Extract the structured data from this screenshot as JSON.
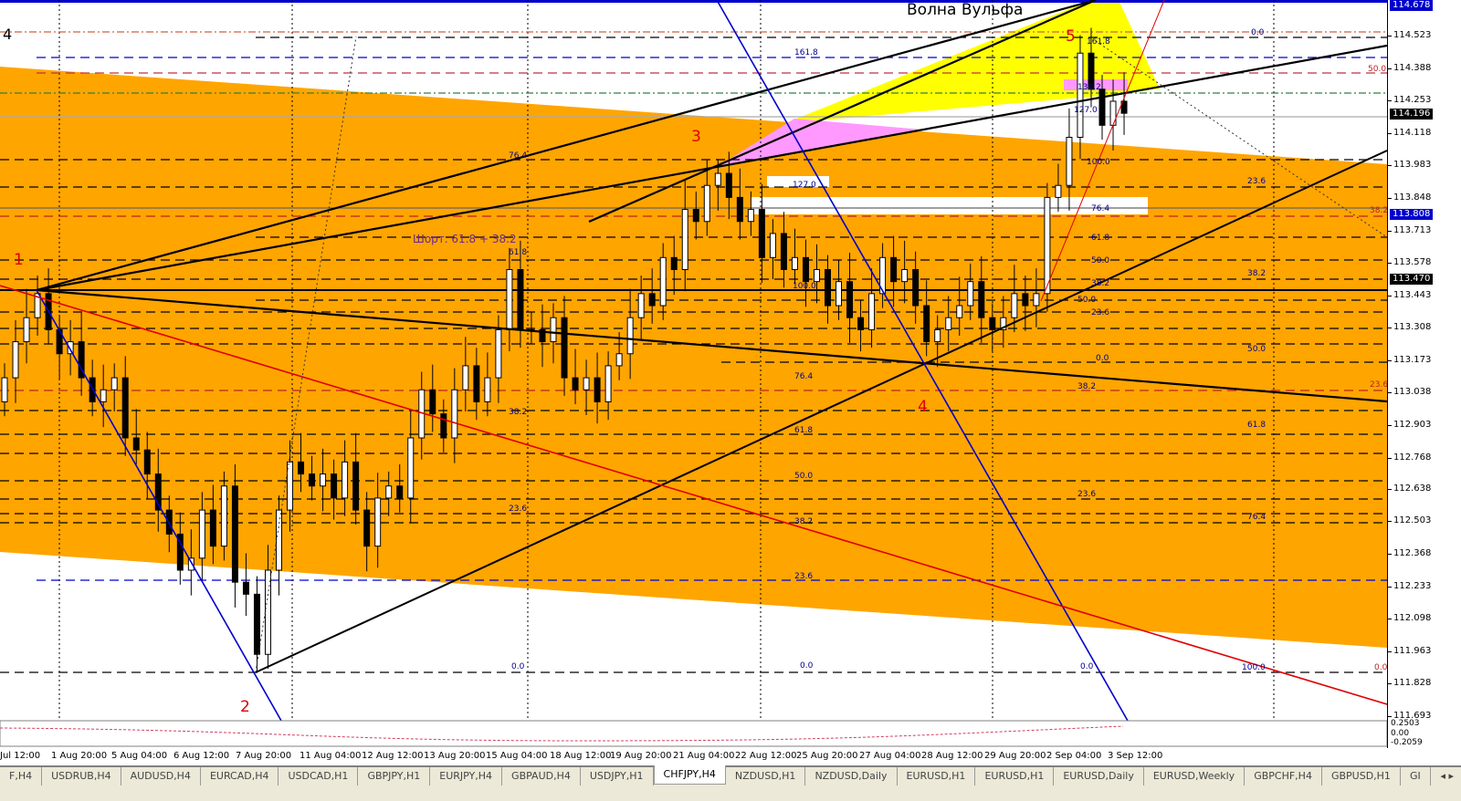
{
  "chart_data": {
    "type": "candlestick",
    "symbol": "CHFJPY,H4",
    "title": "Волна Вульфа",
    "annotation": "Шорт. 61.8 + 38.2",
    "wave_labels": [
      "1",
      "2",
      "3",
      "4",
      "5"
    ],
    "corner_label": "4",
    "ylim": [
      111.693,
      114.66
    ],
    "price_ticks": [
      114.523,
      114.388,
      114.253,
      114.118,
      113.983,
      113.848,
      113.713,
      113.578,
      113.443,
      113.308,
      113.173,
      113.038,
      112.903,
      112.768,
      112.638,
      112.503,
      112.368,
      112.233,
      112.098,
      111.963,
      111.828,
      111.693
    ],
    "price_tags": [
      {
        "value": "114.196",
        "price": 114.196,
        "color": "#000000"
      },
      {
        "value": "113.808",
        "price": 113.808,
        "color": "#0000cc"
      },
      {
        "value": "113.470",
        "price": 113.47,
        "color": "#000000"
      },
      {
        "value": "114.678",
        "price": 114.66,
        "color": "#0000cc"
      }
    ],
    "time_ticks": [
      "Jul 12:00",
      "1 Aug 20:00",
      "5 Aug 04:00",
      "6 Aug 12:00",
      "7 Aug 20:00",
      "11 Aug 04:00",
      "12 Aug 12:00",
      "13 Aug 20:00",
      "15 Aug 04:00",
      "18 Aug 12:00",
      "19 Aug 20:00",
      "21 Aug 04:00",
      "22 Aug 12:00",
      "25 Aug 20:00",
      "27 Aug 04:00",
      "28 Aug 12:00",
      "29 Aug 20:00",
      "2 Sep 04:00",
      "3 Sep 12:00"
    ],
    "first_open": 113.0,
    "closes": [
      113.1,
      113.25,
      113.35,
      113.45,
      113.3,
      113.2,
      113.25,
      113.1,
      113.0,
      113.05,
      113.1,
      112.85,
      112.8,
      112.7,
      112.55,
      112.45,
      112.3,
      112.35,
      112.55,
      112.4,
      112.65,
      112.25,
      112.2,
      111.95,
      112.3,
      112.55,
      112.75,
      112.7,
      112.65,
      112.7,
      112.6,
      112.75,
      112.55,
      112.4,
      112.6,
      112.65,
      112.6,
      112.85,
      113.05,
      112.95,
      112.85,
      113.05,
      113.15,
      113.0,
      113.1,
      113.3,
      113.55,
      113.3,
      113.3,
      113.25,
      113.35,
      113.1,
      113.05,
      113.1,
      113.0,
      113.15,
      113.2,
      113.35,
      113.45,
      113.4,
      113.6,
      113.55,
      113.8,
      113.75,
      113.9,
      113.95,
      113.85,
      113.75,
      113.8,
      113.6,
      113.7,
      113.55,
      113.6,
      113.5,
      113.55,
      113.4,
      113.5,
      113.35,
      113.3,
      113.45,
      113.6,
      113.5,
      113.55,
      113.4,
      113.25,
      113.3,
      113.35,
      113.4,
      113.5,
      113.35,
      113.3,
      113.35,
      113.45,
      113.4,
      113.45,
      113.85,
      113.9,
      114.1,
      114.45,
      114.3,
      114.15,
      114.25,
      114.2
    ],
    "fib_labels": [
      "161.8",
      "76.4",
      "127.0",
      "61.8",
      "100.0",
      "38.2",
      "76.4",
      "61.8",
      "50.0",
      "23.6",
      "38.2",
      "23.6",
      "0.0",
      "0.0",
      "0.0",
      "50.0",
      "23.6",
      "38.2",
      "38.2",
      "50.0",
      "23.6",
      "61.8",
      "76.4",
      "100.0",
      "0.0",
      "100.0",
      "76.4",
      "61.8",
      "50.0",
      "38.2",
      "50.0",
      "23.6",
      "0.0",
      "38.2",
      "23.6",
      "0.0",
      "161.8",
      "138.2",
      "127.0"
    ],
    "oscillator_ticks": [
      "0.2503",
      "0.00",
      "-0.2059"
    ],
    "colors": {
      "channel": "#ffa500",
      "wolfe_target": "#ffff00",
      "pink_zone": "#ff99ff",
      "bull": "#ffffff",
      "bear": "#000000",
      "blue_line": "#0000cc",
      "red_line": "#e00000"
    }
  },
  "tabs": [
    "F,H4",
    "USDRUB,H4",
    "AUDUSD,H4",
    "EURCAD,H4",
    "USDCAD,H1",
    "GBPJPY,H1",
    "EURJPY,H4",
    "GBPAUD,H4",
    "USDJPY,H1",
    "CHFJPY,H4",
    "NZDUSD,H1",
    "NZDUSD,Daily",
    "EURUSD,H1",
    "EURUSD,H1",
    "EURUSD,Daily",
    "EURUSD,Weekly",
    "GBPCHF,H4",
    "GBPUSD,H1",
    "GI"
  ],
  "active_tab": "CHFJPY,H4",
  "tab_nav": "◂ ▸"
}
